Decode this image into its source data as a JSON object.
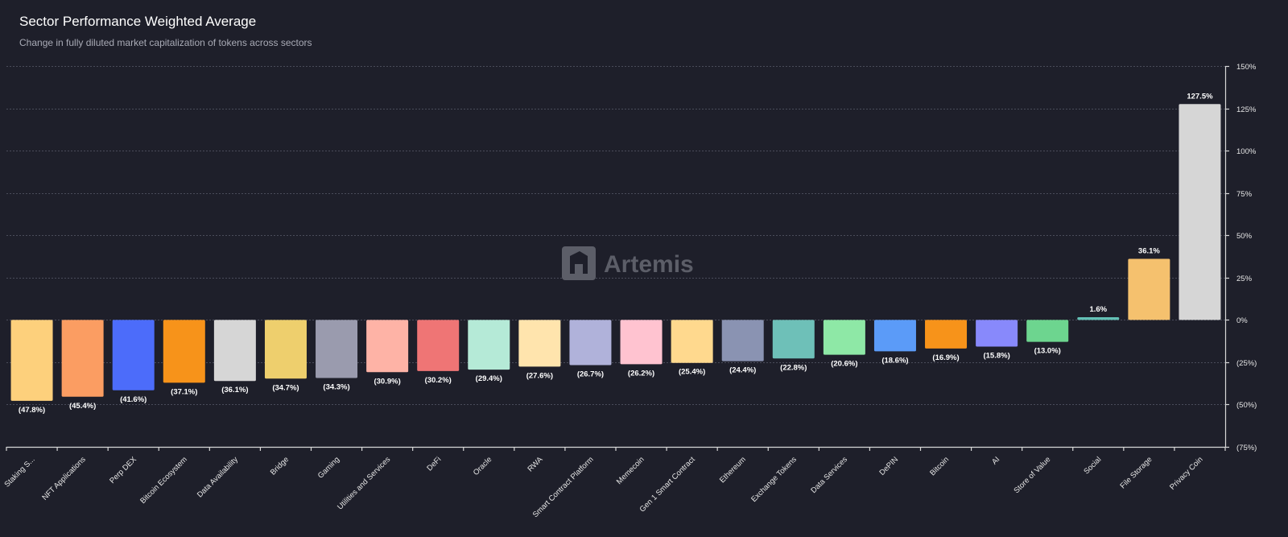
{
  "header": {
    "title": "Sector Performance Weighted Average",
    "subtitle": "Change in fully diluted market capitalization of tokens across sectors"
  },
  "watermark": {
    "text": "Artemis"
  },
  "chart_data": {
    "type": "bar",
    "title": "Sector Performance Weighted Average",
    "subtitle": "Change in fully diluted market capitalization of tokens across sectors",
    "xlabel": "",
    "ylabel": "",
    "ylim": [
      -75,
      150
    ],
    "yticks": [
      150,
      125,
      100,
      75,
      50,
      25,
      0,
      -25,
      -50,
      -75
    ],
    "ytick_labels": [
      "150%",
      "125%",
      "100%",
      "75%",
      "50%",
      "25%",
      "0%",
      "(25%)",
      "(50%)",
      "(75%)"
    ],
    "y_axis_side": "right",
    "grid": true,
    "categories": [
      "Staking S...",
      "NFT Applications",
      "Perp DEX",
      "Bitcoin Ecosystem",
      "Data Availability",
      "Bridge",
      "Gaming",
      "Utilities and Services",
      "DeFi",
      "Oracle",
      "RWA",
      "Smart Contract Platform",
      "Memecoin",
      "Gen 1 Smart Contract",
      "Ethereum",
      "Exchange Tokens",
      "Data Services",
      "DePIN",
      "Bitcoin",
      "AI",
      "Store of Value",
      "Social",
      "File Storage",
      "Privacy Coin"
    ],
    "values": [
      -47.8,
      -45.4,
      -41.6,
      -37.1,
      -36.1,
      -34.7,
      -34.3,
      -30.9,
      -30.2,
      -29.4,
      -27.6,
      -26.7,
      -26.2,
      -25.4,
      -24.4,
      -22.8,
      -20.6,
      -18.6,
      -16.9,
      -15.8,
      -13.0,
      1.6,
      36.1,
      127.5
    ],
    "value_labels": [
      "(47.8%)",
      "(45.4%)",
      "(41.6%)",
      "(37.1%)",
      "(36.1%)",
      "(34.7%)",
      "(34.3%)",
      "(30.9%)",
      "(30.2%)",
      "(29.4%)",
      "(27.6%)",
      "(26.7%)",
      "(26.2%)",
      "(25.4%)",
      "(24.4%)",
      "(22.8%)",
      "(20.6%)",
      "(18.6%)",
      "(16.9%)",
      "(15.8%)",
      "(13.0%)",
      "1.6%",
      "36.1%",
      "127.5%"
    ],
    "colors": [
      "#fdd07c",
      "#fb9d62",
      "#4c6cfa",
      "#f7931a",
      "#d6d6d6",
      "#eecf6d",
      "#9a9bae",
      "#feb3a6",
      "#ef7575",
      "#b5ead7",
      "#ffe4ad",
      "#b0b2da",
      "#ffc3d0",
      "#ffd98e",
      "#8a93b2",
      "#6ec0b8",
      "#8ee8a6",
      "#5b9bf8",
      "#f7931a",
      "#8889fb",
      "#6dd58f",
      "#63c0b5",
      "#f5c16e",
      "#d6d6d6"
    ]
  }
}
